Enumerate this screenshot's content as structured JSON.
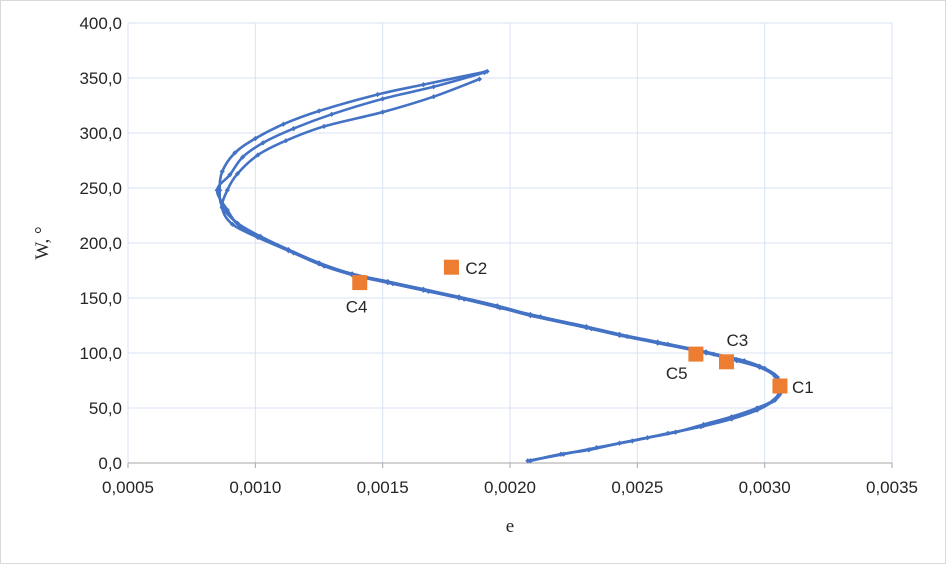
{
  "chart_data": {
    "type": "scatter",
    "xlabel": "e",
    "ylabel": "W, °",
    "xlim": [
      0.0005,
      0.0035
    ],
    "ylim": [
      0,
      400
    ],
    "xticks": [
      0.0005,
      0.001,
      0.0015,
      0.002,
      0.0025,
      0.003,
      0.0035
    ],
    "yticks": [
      0,
      50,
      100,
      150,
      200,
      250,
      300,
      350,
      400
    ],
    "xtick_labels": [
      "0,0005",
      "0,0010",
      "0,0015",
      "0,0020",
      "0,0025",
      "0,0030",
      "0,0035"
    ],
    "ytick_labels": [
      "0,0",
      "50,0",
      "100,0",
      "150,0",
      "200,0",
      "250,0",
      "300,0",
      "350,0",
      "400,0"
    ],
    "grid": true,
    "legend": "none",
    "series": [
      {
        "style": "smooth-line-markers",
        "color": "#4472C4",
        "x": [
          0.00208,
          0.0022,
          0.00231,
          0.00243,
          0.00254,
          0.00265,
          0.00276,
          0.00287,
          0.00297,
          0.00304,
          0.00306,
          0.00304,
          0.00298,
          0.00289,
          0.00277,
          0.00258,
          0.00243,
          0.0023,
          0.00208,
          0.00195,
          0.0018,
          0.00166,
          0.00152,
          0.00138,
          0.00125,
          0.00113,
          0.00102,
          0.00093,
          0.00087,
          0.00086,
          0.00087,
          0.00092,
          0.001,
          0.00111,
          0.00125,
          0.00148,
          0.00166,
          0.00191
        ],
        "y": [
          2,
          8,
          12,
          18,
          23,
          28,
          35,
          42,
          50,
          58,
          70,
          80,
          88,
          94,
          101,
          110,
          117,
          124,
          135,
          143,
          151,
          158,
          165,
          172,
          182,
          194,
          206,
          218,
          233,
          248,
          265,
          282,
          295,
          308,
          320,
          335,
          344,
          356
        ]
      },
      {
        "style": "smooth-line-markers",
        "color": "#4472C4",
        "x": [
          0.00208,
          0.0022,
          0.00231,
          0.00243,
          0.00254,
          0.00265,
          0.00276,
          0.00287,
          0.00297,
          0.00304,
          0.00307,
          0.00304,
          0.00298,
          0.00289,
          0.00277,
          0.00258,
          0.00243,
          0.0023,
          0.00208,
          0.00195,
          0.0018,
          0.00166,
          0.00152,
          0.00138,
          0.00125,
          0.00113,
          0.00101,
          0.00091,
          0.00087,
          0.00089,
          0.00093,
          0.00101,
          0.00112,
          0.00127,
          0.0015,
          0.0017,
          0.00188
        ],
        "y": [
          2,
          8,
          12,
          18,
          23,
          28,
          34,
          41,
          49,
          57,
          68,
          79,
          87,
          93,
          100,
          109,
          116,
          123,
          134,
          142,
          150,
          157,
          164,
          171,
          181,
          193,
          205,
          217,
          232,
          248,
          263,
          280,
          293,
          306,
          319,
          333,
          349
        ]
      },
      {
        "style": "smooth-line-markers",
        "color": "#4472C4",
        "x": [
          0.00207,
          0.00221,
          0.00234,
          0.00248,
          0.00262,
          0.00275,
          0.00287,
          0.00297,
          0.00303,
          0.00306,
          0.00305,
          0.003,
          0.00292,
          0.0028,
          0.00262,
          0.00246,
          0.00232,
          0.00212,
          0.00196,
          0.00182,
          0.00168,
          0.00154,
          0.0014,
          0.00127,
          0.00115,
          0.00104,
          0.00094,
          0.00089,
          0.00085,
          0.0009,
          0.00095,
          0.00103,
          0.00115,
          0.0013,
          0.0015,
          0.0017,
          0.0019
        ],
        "y": [
          2,
          8,
          14,
          20,
          27,
          33,
          40,
          48,
          56,
          66,
          78,
          86,
          93,
          99,
          108,
          115,
          122,
          133,
          141,
          149,
          156,
          163,
          170,
          179,
          191,
          203,
          215,
          230,
          248,
          262,
          278,
          291,
          304,
          317,
          331,
          342,
          355
        ]
      },
      {
        "style": "square-markers",
        "color": "#ED7D31",
        "x": [
          0.00306,
          0.00177,
          0.00285,
          0.00141,
          0.00273
        ],
        "y": [
          70,
          178,
          92,
          164,
          99
        ]
      }
    ],
    "annotations": [
      {
        "text": "C1",
        "x": 0.00306,
        "y": 70
      },
      {
        "text": "C2",
        "x": 0.00177,
        "y": 178
      },
      {
        "text": "C3",
        "x": 0.00285,
        "y": 92
      },
      {
        "text": "C4",
        "x": 0.00141,
        "y": 164
      },
      {
        "text": "C5",
        "x": 0.00273,
        "y": 99
      }
    ]
  }
}
